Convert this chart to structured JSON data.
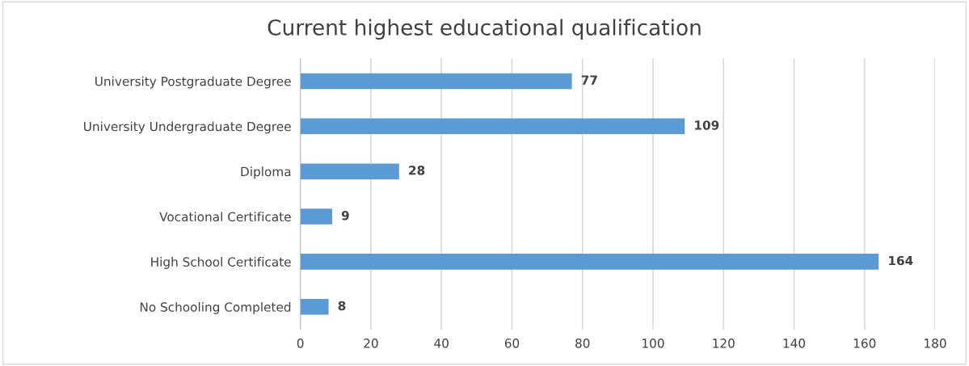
{
  "chart_data": {
    "type": "bar",
    "orientation": "horizontal",
    "title": "Current highest educational qualification",
    "categories": [
      "University Postgraduate Degree",
      "University Undergraduate Degree",
      "Diploma",
      "Vocational Certificate",
      "High School Certificate",
      "No Schooling Completed"
    ],
    "values": [
      77,
      109,
      28,
      9,
      164,
      8
    ],
    "color": "#5b9bd5",
    "xlim": [
      0,
      180
    ],
    "xticks": [
      0,
      20,
      40,
      60,
      80,
      100,
      120,
      140,
      160,
      180
    ],
    "grid": "x",
    "data_labels": true
  }
}
